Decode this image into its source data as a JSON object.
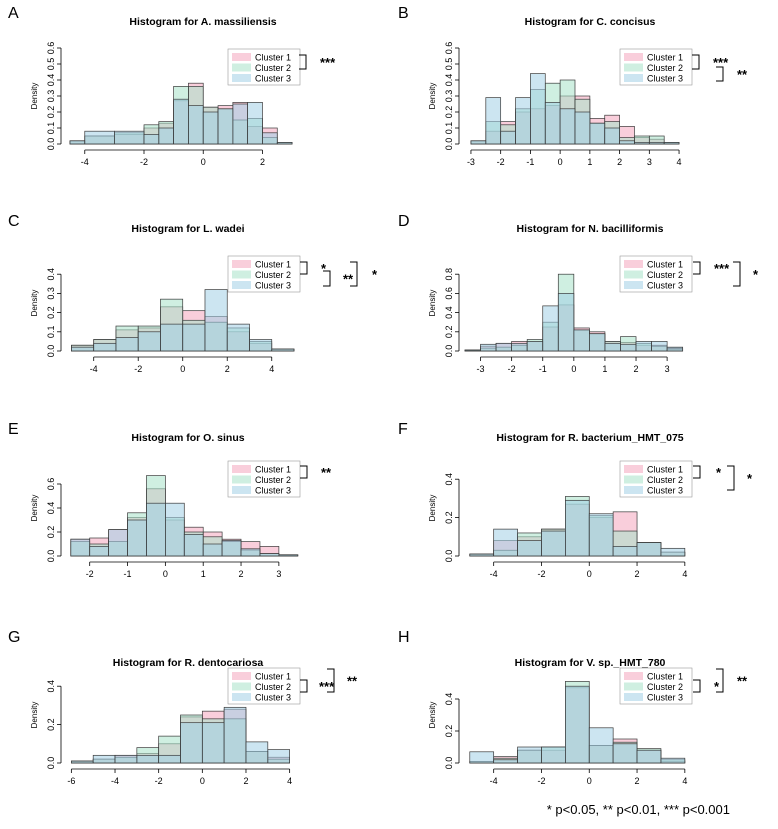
{
  "colors": {
    "cluster1": "#f4a6bd",
    "cluster2": "#a8e2c8",
    "cluster3": "#a3cfe6",
    "edge": "#3a3a3a"
  },
  "footnote": "* p<0.05,  ** p<0.01, *** p<0.001",
  "chart_data": [
    {
      "panel": "A",
      "type": "histogram",
      "title": "Histogram for A. massiliensis",
      "ylabel": "Density",
      "xlim": [
        -4.6,
        3.2
      ],
      "ylim": [
        0,
        0.6
      ],
      "xticks": [
        -4,
        -2,
        0,
        2
      ],
      "yticks": [
        0,
        0.1,
        0.2,
        0.3,
        0.4,
        0.5,
        0.6
      ],
      "bins": [
        -4.5,
        -4,
        -3,
        -2,
        -1.5,
        -1,
        -0.5,
        0,
        0.5,
        1,
        1.5,
        2,
        2.5,
        3
      ],
      "series": [
        {
          "name": "Cluster 1",
          "values": [
            0.02,
            0.05,
            0.06,
            0.1,
            0.13,
            0.27,
            0.38,
            0.23,
            0.24,
            0.26,
            0.11,
            0.1,
            0.01
          ]
        },
        {
          "name": "Cluster 2",
          "values": [
            0.02,
            0.05,
            0.07,
            0.12,
            0.14,
            0.36,
            0.36,
            0.23,
            0.22,
            0.15,
            0.16,
            0.04,
            0.01
          ]
        },
        {
          "name": "Cluster 3",
          "values": [
            0.02,
            0.08,
            0.08,
            0.06,
            0.1,
            0.28,
            0.24,
            0.2,
            0.22,
            0.25,
            0.26,
            0.07,
            0.01
          ]
        }
      ],
      "legend": [
        "Cluster 1",
        "Cluster 2",
        "Cluster 3"
      ],
      "significance": [
        {
          "pair": "Cluster 1 vs Cluster 2",
          "label": "***"
        }
      ]
    },
    {
      "panel": "B",
      "type": "histogram",
      "title": "Histogram for C. concisus",
      "ylabel": "Density",
      "xlim": [
        -3.2,
        4.2
      ],
      "ylim": [
        0,
        0.6
      ],
      "xticks": [
        -3,
        -2,
        -1,
        0,
        1,
        2,
        3,
        4
      ],
      "yticks": [
        0,
        0.1,
        0.2,
        0.3,
        0.4,
        0.5,
        0.6
      ],
      "bins": [
        -3,
        -2.5,
        -2,
        -1.5,
        -1,
        -0.5,
        0,
        0.5,
        1,
        1.5,
        2,
        2.5,
        3,
        3.5,
        4
      ],
      "series": [
        {
          "name": "Cluster 1",
          "values": [
            0.02,
            0.08,
            0.14,
            0.2,
            0.22,
            0.24,
            0.3,
            0.3,
            0.16,
            0.18,
            0.11,
            0.04,
            0.03,
            0.01
          ]
        },
        {
          "name": "Cluster 2",
          "values": [
            0.02,
            0.14,
            0.12,
            0.22,
            0.34,
            0.38,
            0.4,
            0.28,
            0.13,
            0.14,
            0.04,
            0.05,
            0.05,
            0.01
          ]
        },
        {
          "name": "Cluster 3",
          "values": [
            0.02,
            0.29,
            0.08,
            0.29,
            0.44,
            0.26,
            0.22,
            0.2,
            0.13,
            0.1,
            0.02,
            0.01,
            0.01,
            0.01
          ]
        }
      ],
      "legend": [
        "Cluster 1",
        "Cluster 2",
        "Cluster 3"
      ],
      "significance": [
        {
          "pair": "Cluster 1 vs Cluster 2",
          "label": "***"
        },
        {
          "pair": "Cluster 2 vs Cluster 3",
          "label": "**"
        }
      ]
    },
    {
      "panel": "C",
      "type": "histogram",
      "title": "Histogram for L. wadei",
      "ylabel": "Density",
      "xlim": [
        -5.2,
        5
      ],
      "ylim": [
        0,
        0.5
      ],
      "xticks": [
        -4,
        -2,
        0,
        2,
        4
      ],
      "yticks": [
        0,
        0.1,
        0.2,
        0.3,
        0.4
      ],
      "bins": [
        -5,
        -4,
        -3,
        -2,
        -1,
        0,
        1,
        2,
        3,
        4,
        5
      ],
      "series": [
        {
          "name": "Cluster 1",
          "values": [
            0.03,
            0.06,
            0.11,
            0.12,
            0.23,
            0.21,
            0.18,
            0.1,
            0.04,
            0.01
          ]
        },
        {
          "name": "Cluster 2",
          "values": [
            0.03,
            0.06,
            0.13,
            0.13,
            0.27,
            0.16,
            0.15,
            0.12,
            0.05,
            0.01
          ]
        },
        {
          "name": "Cluster 3",
          "values": [
            0.02,
            0.04,
            0.07,
            0.1,
            0.14,
            0.14,
            0.32,
            0.14,
            0.06,
            0.01
          ]
        }
      ],
      "legend": [
        "Cluster 1",
        "Cluster 2",
        "Cluster 3"
      ],
      "significance": [
        {
          "pair": "Cluster 1 vs Cluster 2",
          "label": "*"
        },
        {
          "pair": "Cluster 2 vs Cluster 3",
          "label": "**"
        },
        {
          "pair": "Cluster 1 vs Cluster 3",
          "label": "*"
        }
      ]
    },
    {
      "panel": "D",
      "type": "histogram",
      "title": "Histogram for N. bacilliformis",
      "ylabel": "Density",
      "xlim": [
        -3.5,
        3.8
      ],
      "ylim": [
        0,
        1.0
      ],
      "xticks": [
        -3,
        -2,
        -1,
        0,
        1,
        2,
        3
      ],
      "yticks": [
        0,
        0.2,
        0.4,
        0.6,
        0.8
      ],
      "bins": [
        -3.5,
        -3,
        -2.5,
        -2,
        -1.5,
        -1,
        -0.5,
        0,
        0.5,
        1,
        1.5,
        2,
        2.5,
        3,
        3.5
      ],
      "series": [
        {
          "name": "Cluster 1",
          "values": [
            0.01,
            0.05,
            0.08,
            0.1,
            0.1,
            0.25,
            0.48,
            0.24,
            0.2,
            0.1,
            0.09,
            0.06,
            0.06,
            0.03
          ]
        },
        {
          "name": "Cluster 2",
          "values": [
            0.01,
            0.03,
            0.04,
            0.06,
            0.12,
            0.3,
            0.8,
            0.22,
            0.18,
            0.1,
            0.15,
            0.08,
            0.05,
            0.02
          ]
        },
        {
          "name": "Cluster 3",
          "values": [
            0.01,
            0.07,
            0.08,
            0.08,
            0.1,
            0.47,
            0.6,
            0.22,
            0.18,
            0.08,
            0.07,
            0.1,
            0.1,
            0.04
          ]
        }
      ],
      "legend": [
        "Cluster 1",
        "Cluster 2",
        "Cluster 3"
      ],
      "significance": [
        {
          "pair": "Cluster 1 vs Cluster 2",
          "label": "***"
        },
        {
          "pair": "Cluster 1 vs Cluster 3",
          "label": "*"
        }
      ]
    },
    {
      "panel": "E",
      "type": "histogram",
      "title": "Histogram for O. sinus",
      "ylabel": "Density",
      "xlim": [
        -2.6,
        3.4
      ],
      "ylim": [
        0,
        0.8
      ],
      "xticks": [
        -2,
        -1,
        0,
        1,
        2,
        3
      ],
      "yticks": [
        0,
        0.2,
        0.4,
        0.6
      ],
      "bins": [
        -2.5,
        -2,
        -1.5,
        -1,
        -0.5,
        0,
        0.5,
        1,
        1.5,
        2,
        2.5,
        3,
        3.5
      ],
      "series": [
        {
          "name": "Cluster 1",
          "values": [
            0.14,
            0.15,
            0.22,
            0.32,
            0.56,
            0.3,
            0.24,
            0.2,
            0.14,
            0.12,
            0.08,
            0.01
          ]
        },
        {
          "name": "Cluster 2",
          "values": [
            0.12,
            0.1,
            0.12,
            0.36,
            0.67,
            0.32,
            0.2,
            0.16,
            0.12,
            0.05,
            0.02,
            0.01
          ]
        },
        {
          "name": "Cluster 3",
          "values": [
            0.14,
            0.08,
            0.22,
            0.3,
            0.44,
            0.44,
            0.18,
            0.1,
            0.13,
            0.06,
            0.02,
            0.01
          ]
        }
      ],
      "legend": [
        "Cluster 1",
        "Cluster 2",
        "Cluster 3"
      ],
      "significance": [
        {
          "pair": "Cluster 1 vs Cluster 2",
          "label": "**"
        }
      ]
    },
    {
      "panel": "F",
      "type": "histogram",
      "title": "Histogram for R. bacterium_HMT_075",
      "ylabel": "Density",
      "xlim": [
        -5.2,
        4.3
      ],
      "ylim": [
        0,
        0.5
      ],
      "xticks": [
        -4,
        -2,
        0,
        2,
        4
      ],
      "yticks": [
        0,
        0.2,
        0.4
      ],
      "bins": [
        -5,
        -4,
        -3,
        -2,
        -1,
        0,
        1,
        2,
        3,
        4
      ],
      "series": [
        {
          "name": "Cluster 1",
          "values": [
            0.01,
            0.08,
            0.1,
            0.14,
            0.27,
            0.2,
            0.23,
            0.07,
            0.02
          ]
        },
        {
          "name": "Cluster 2",
          "values": [
            0.01,
            0.03,
            0.12,
            0.14,
            0.31,
            0.21,
            0.13,
            0.07,
            0.02
          ]
        },
        {
          "name": "Cluster 3",
          "values": [
            0.01,
            0.14,
            0.08,
            0.13,
            0.29,
            0.22,
            0.05,
            0.07,
            0.04
          ]
        }
      ],
      "legend": [
        "Cluster 1",
        "Cluster 2",
        "Cluster 3"
      ],
      "significance": [
        {
          "pair": "Cluster 1 vs Cluster 2",
          "label": "*"
        },
        {
          "pair": "Cluster 1 vs Cluster 3",
          "label": "*"
        }
      ]
    },
    {
      "panel": "G",
      "type": "histogram",
      "title": "Histogram for R. dentocariosa",
      "ylabel": "Density",
      "xlim": [
        -6.2,
        4.2
      ],
      "ylim": [
        0,
        0.5
      ],
      "xticks": [
        -6,
        -4,
        -2,
        0,
        2,
        4
      ],
      "yticks": [
        0,
        0.2,
        0.4
      ],
      "bins": [
        -6,
        -5,
        -4,
        -3,
        -2,
        -1,
        0,
        1,
        2,
        3,
        4
      ],
      "series": [
        {
          "name": "Cluster 1",
          "values": [
            0.01,
            0.02,
            0.04,
            0.05,
            0.1,
            0.24,
            0.27,
            0.28,
            0.06,
            0.03
          ]
        },
        {
          "name": "Cluster 2",
          "values": [
            0.01,
            0.02,
            0.03,
            0.08,
            0.14,
            0.25,
            0.23,
            0.23,
            0.06,
            0.02
          ]
        },
        {
          "name": "Cluster 3",
          "values": [
            0.01,
            0.04,
            0.04,
            0.04,
            0.04,
            0.21,
            0.21,
            0.29,
            0.11,
            0.07
          ]
        }
      ],
      "legend": [
        "Cluster 1",
        "Cluster 2",
        "Cluster 3"
      ],
      "significance": [
        {
          "pair": "Cluster 2 vs Cluster 3",
          "label": "***"
        },
        {
          "pair": "Cluster 1 vs Cluster 3",
          "label": "**"
        }
      ]
    },
    {
      "panel": "H",
      "type": "histogram",
      "title": "Histogram for V. sp._HMT_780",
      "ylabel": "Density",
      "xlim": [
        -5.2,
        4.3
      ],
      "ylim": [
        0,
        0.6
      ],
      "xticks": [
        -4,
        -2,
        0,
        2,
        4
      ],
      "yticks": [
        0,
        0.2,
        0.4
      ],
      "bins": [
        -5,
        -4,
        -3,
        -2,
        -1,
        0,
        1,
        2,
        3,
        4
      ],
      "series": [
        {
          "name": "Cluster 1",
          "values": [
            0.01,
            0.04,
            0.08,
            0.08,
            0.47,
            0.11,
            0.15,
            0.08,
            0.01
          ]
        },
        {
          "name": "Cluster 2",
          "values": [
            0.01,
            0.03,
            0.08,
            0.1,
            0.51,
            0.11,
            0.13,
            0.09,
            0.02
          ]
        },
        {
          "name": "Cluster 3",
          "values": [
            0.07,
            0.02,
            0.1,
            0.1,
            0.48,
            0.22,
            0.12,
            0.08,
            0.03
          ]
        }
      ],
      "legend": [
        "Cluster 1",
        "Cluster 2",
        "Cluster 3"
      ],
      "significance": [
        {
          "pair": "Cluster 2 vs Cluster 3",
          "label": "*"
        },
        {
          "pair": "Cluster 1 vs Cluster 3",
          "label": "**"
        }
      ]
    }
  ]
}
